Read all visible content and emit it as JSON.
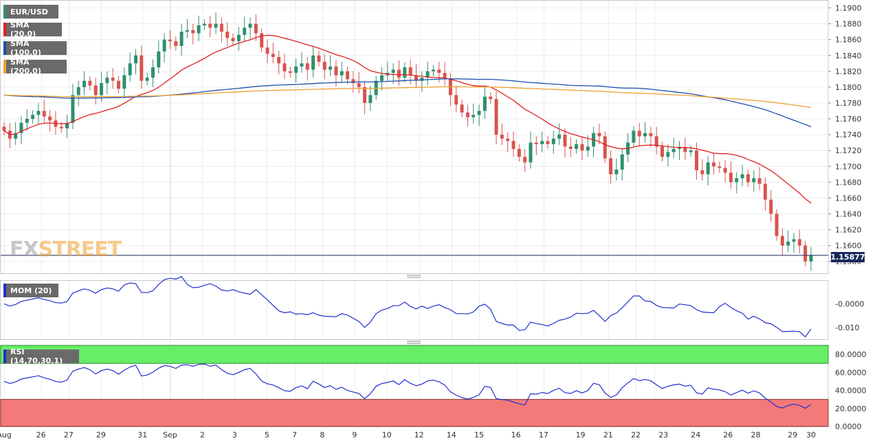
{
  "chart_data": [
    {
      "type": "candlestick",
      "symbol": "EUR/USD",
      "legend": [
        {
          "name": "EUR/USD",
          "color": "#2f8f6f"
        },
        {
          "name": "SMA (20,0)",
          "color": "#e02020"
        },
        {
          "name": "SMA (100,0)",
          "color": "#1f4fb0"
        },
        {
          "name": "SMA (200,0)",
          "color": "#f0a030"
        }
      ],
      "ylim": [
        1.1565,
        1.191
      ],
      "y_ticks": [
        "1.1580",
        "1.1600",
        "1.1620",
        "1.1640",
        "1.1660",
        "1.1680",
        "1.1700",
        "1.1720",
        "1.1740",
        "1.1760",
        "1.1780",
        "1.1800",
        "1.1820",
        "1.1840",
        "1.1860",
        "1.1880",
        "1.1900"
      ],
      "current_price": "1.15877",
      "x_labels": [
        "Aug",
        "26",
        "27",
        "29",
        "31",
        "Sep",
        "2",
        "3",
        "5",
        "7",
        "8",
        "9",
        "10",
        "12",
        "14",
        "15",
        "16",
        "17",
        "19",
        "21",
        "22",
        "23",
        "24",
        "26",
        "28",
        "29",
        "30"
      ],
      "closes": [
        1.1745,
        1.1735,
        1.1742,
        1.1755,
        1.176,
        1.1765,
        1.177,
        1.1763,
        1.1758,
        1.175,
        1.1748,
        1.1755,
        1.179,
        1.18,
        1.1808,
        1.1802,
        1.179,
        1.1805,
        1.1812,
        1.1808,
        1.1798,
        1.1815,
        1.183,
        1.184,
        1.1808,
        1.1812,
        1.1825,
        1.1845,
        1.186,
        1.1858,
        1.1852,
        1.187,
        1.1872,
        1.1868,
        1.1878,
        1.188,
        1.1875,
        1.188,
        1.187,
        1.1862,
        1.1858,
        1.1866,
        1.1875,
        1.188,
        1.1868,
        1.185,
        1.1842,
        1.1838,
        1.183,
        1.182,
        1.1818,
        1.1826,
        1.183,
        1.1822,
        1.184,
        1.1832,
        1.1822,
        1.1826,
        1.1815,
        1.182,
        1.181,
        1.1805,
        1.18,
        1.178,
        1.179,
        1.1808,
        1.1815,
        1.1818,
        1.1822,
        1.1812,
        1.1825,
        1.1815,
        1.1808,
        1.1812,
        1.182,
        1.1822,
        1.1818,
        1.181,
        1.179,
        1.1778,
        1.1768,
        1.1762,
        1.1765,
        1.177,
        1.1788,
        1.1785,
        1.174,
        1.1735,
        1.1732,
        1.1722,
        1.1712,
        1.1705,
        1.173,
        1.1728,
        1.1732,
        1.1728,
        1.1735,
        1.174,
        1.1725,
        1.1722,
        1.1728,
        1.172,
        1.1725,
        1.1742,
        1.1738,
        1.171,
        1.169,
        1.1696,
        1.1715,
        1.173,
        1.1745,
        1.1738,
        1.1742,
        1.1738,
        1.1725,
        1.1712,
        1.1718,
        1.1722,
        1.1724,
        1.1718,
        1.172,
        1.1695,
        1.169,
        1.1705,
        1.17,
        1.1698,
        1.1692,
        1.168,
        1.1685,
        1.169,
        1.168,
        1.1685,
        1.1678,
        1.1658,
        1.164,
        1.1612,
        1.16,
        1.1605,
        1.1608,
        1.16,
        1.158,
        1.1588
      ],
      "mom": {
        "name": "MOM (20)",
        "y_ticks": [
          "-0.0000",
          "-0.010"
        ]
      },
      "rsi": {
        "name": "RSI (14,70,30,1)",
        "ylim": [
          0,
          90
        ],
        "overbought": 70,
        "oversold": 30,
        "y_ticks": [
          "0.0000",
          "20.0000",
          "40.0000",
          "60.0000",
          "80.0000"
        ]
      }
    }
  ],
  "watermark": {
    "part1": "FX",
    "part2": "STREET"
  }
}
